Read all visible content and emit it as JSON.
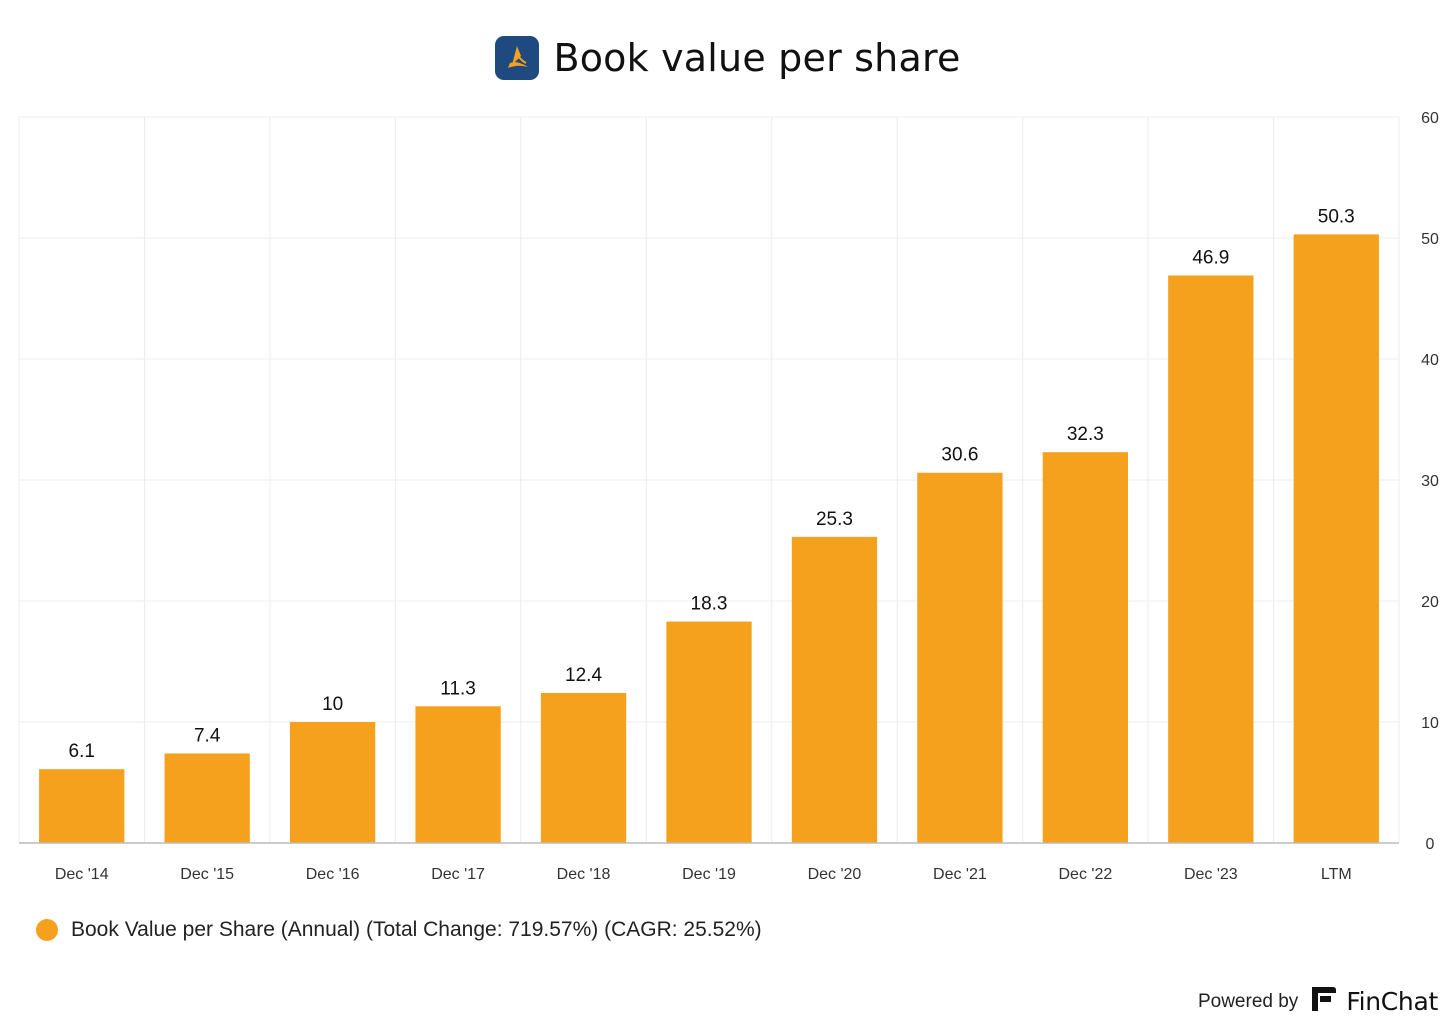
{
  "header": {
    "title": "Book value per share",
    "logo_icon": "company-logo-icon"
  },
  "colors": {
    "bar": "#F6A11E",
    "logo_bg": "#1F4A80",
    "logo_mark": "#F6A11E"
  },
  "chart_data": {
    "type": "bar",
    "title": "Book value per share",
    "categories": [
      "Dec '14",
      "Dec '15",
      "Dec '16",
      "Dec '17",
      "Dec '18",
      "Dec '19",
      "Dec '20",
      "Dec '21",
      "Dec '22",
      "Dec '23",
      "LTM"
    ],
    "series": [
      {
        "name": "Book Value per Share (Annual) (Total Change: 719.57%) (CAGR: 25.52%)",
        "values": [
          6.1,
          7.4,
          10,
          11.3,
          12.4,
          18.3,
          25.3,
          30.6,
          32.3,
          46.9,
          50.3
        ]
      }
    ],
    "ylim": [
      0,
      60
    ],
    "yticks": [
      0,
      10,
      20,
      30,
      40,
      50,
      60
    ],
    "y_axis_position": "right",
    "grid": true,
    "data_labels": true,
    "legend_placement": "bottom-left"
  },
  "footer": {
    "powered_by": "Powered by",
    "brand": "FinChat",
    "brand_icon": "finchat-logo-icon"
  }
}
